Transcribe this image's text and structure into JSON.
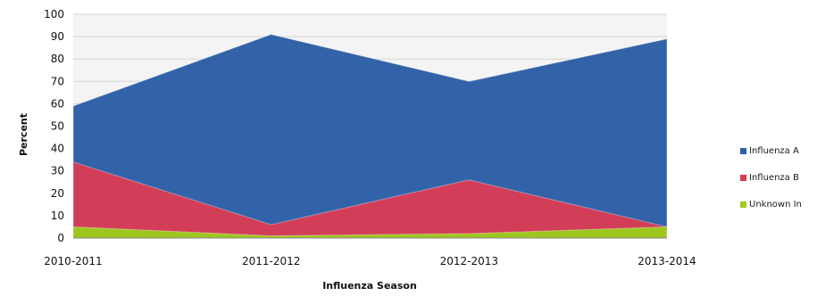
{
  "chart_data": {
    "type": "area",
    "stacked": false,
    "x": [
      "2010-2011",
      "2011-2012",
      "2012-2013",
      "2013-2014"
    ],
    "series": [
      {
        "name": "Influenza A",
        "values": [
          59,
          91,
          70,
          89
        ],
        "color": "#2f61a8"
      },
      {
        "name": "Influenza B",
        "values": [
          34,
          6,
          26,
          5
        ],
        "color": "#d93d55"
      },
      {
        "name": "Unknown In",
        "values": [
          5,
          1,
          2,
          5
        ],
        "color": "#9ccc1c"
      }
    ],
    "ylabel": "Percent",
    "xlabel": "Influenza Season",
    "ylim": [
      0,
      100
    ],
    "yticks": [
      0,
      10,
      20,
      30,
      40,
      50,
      60,
      70,
      80,
      90,
      100
    ],
    "ytick_labels": [
      "0",
      "10",
      "20",
      "30",
      "40",
      "50",
      "60",
      "70",
      "80",
      "90",
      "100"
    ],
    "grid": true,
    "legend_position": "right"
  }
}
